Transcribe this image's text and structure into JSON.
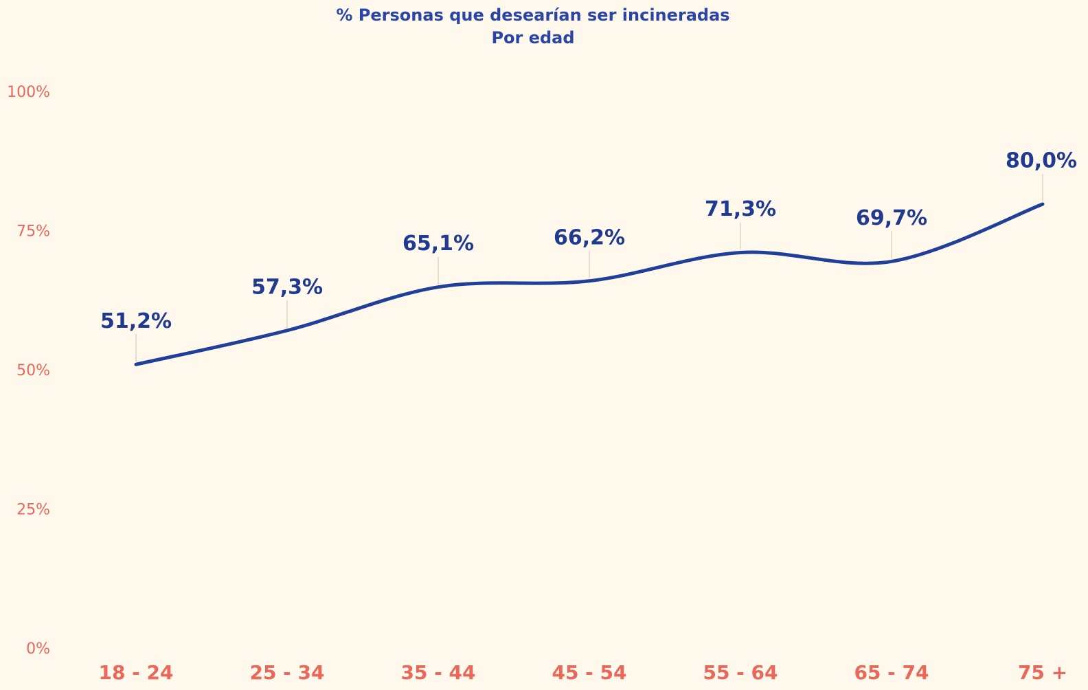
{
  "chart_data": {
    "type": "line",
    "title": "% Personas que desearían ser incineradas",
    "subtitle": "Por edad",
    "categories": [
      "18 - 24",
      "25 - 34",
      "35 - 44",
      "45 - 54",
      "55 - 64",
      "65 - 74",
      "75 +"
    ],
    "series": [
      {
        "color": "#1f3f99",
        "values": [
          51.2,
          57.3,
          65.1,
          66.2,
          71.3,
          69.7,
          80.0
        ],
        "value_labels": [
          "51,2%",
          "57,3%",
          "65,1%",
          "66,2%",
          "71,3%",
          "69,7%",
          "80,0%"
        ]
      }
    ],
    "ylim": [
      0,
      100
    ],
    "yticks": [
      {
        "value": 0,
        "label": "0%"
      },
      {
        "value": 25,
        "label": "25%"
      },
      {
        "value": 50,
        "label": "50%"
      },
      {
        "value": 75,
        "label": "75%"
      },
      {
        "value": 100,
        "label": "100%"
      }
    ],
    "grid": false
  }
}
